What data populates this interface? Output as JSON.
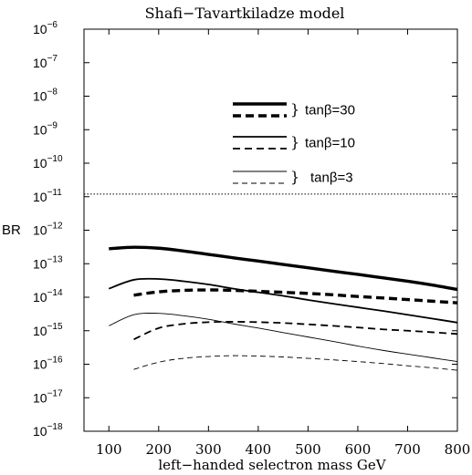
{
  "chart_data": {
    "type": "line",
    "title": "Shafi−Tavartkiladze  model",
    "xlabel": "left−handed  selectron  mass      GeV",
    "ylabel": "BR",
    "xlim": [
      50,
      800
    ],
    "ylim_log10": [
      -18,
      -6
    ],
    "y_scale": "log",
    "x_ticks": [
      100,
      200,
      300,
      400,
      500,
      600,
      700,
      800
    ],
    "x_tick_labels": [
      "100",
      "200",
      "300",
      "400",
      "500",
      "600",
      "700",
      "800"
    ],
    "y_ticks_exp": [
      -6,
      -7,
      -8,
      -9,
      -10,
      -11,
      -12,
      -13,
      -14,
      -15,
      -16,
      -17,
      -18
    ],
    "y_tick_base": "10",
    "reference_line": {
      "y": 1.2e-11,
      "style": "dotted"
    },
    "legend": [
      {
        "label": "tanβ=30",
        "brace": "}"
      },
      {
        "label": "tanβ=10",
        "brace": "}"
      },
      {
        "label": "tanβ=3",
        "brace": "}"
      }
    ],
    "series": [
      {
        "group": 0,
        "style": "solid",
        "weight": "thick",
        "x": [
          100,
          150,
          200,
          250,
          300,
          350,
          400,
          450,
          500,
          550,
          600,
          650,
          700,
          750,
          800
        ],
        "y": [
          2.8e-13,
          3.1e-13,
          2.9e-13,
          2.4e-13,
          1.9e-13,
          1.5e-13,
          1.2e-13,
          9.5e-14,
          7.6e-14,
          6e-14,
          4.8e-14,
          3.8e-14,
          3e-14,
          2.3e-14,
          1.7e-14
        ]
      },
      {
        "group": 0,
        "style": "dashed",
        "weight": "thick",
        "x": [
          150,
          200,
          250,
          300,
          350,
          400,
          450,
          500,
          550,
          600,
          650,
          700,
          750,
          800
        ],
        "y": [
          1.15e-14,
          1.45e-14,
          1.6e-14,
          1.65e-14,
          1.6e-14,
          1.5e-14,
          1.4e-14,
          1.3e-14,
          1.18e-14,
          1.05e-14,
          9.5e-15,
          8.5e-15,
          7.6e-15,
          6.8e-15
        ]
      },
      {
        "group": 1,
        "style": "solid",
        "weight": "medium",
        "x": [
          100,
          150,
          200,
          250,
          300,
          350,
          400,
          450,
          500,
          550,
          600,
          650,
          700,
          750,
          800
        ],
        "y": [
          1.8e-14,
          3.3e-14,
          3.5e-14,
          3e-14,
          2.4e-14,
          1.8e-14,
          1.4e-14,
          1.1e-14,
          8.3e-15,
          6.4e-15,
          5e-15,
          3.9e-15,
          3e-15,
          2.3e-15,
          1.75e-15
        ]
      },
      {
        "group": 1,
        "style": "dashed",
        "weight": "medium",
        "x": [
          150,
          200,
          250,
          300,
          350,
          400,
          450,
          500,
          550,
          600,
          650,
          700,
          750,
          800
        ],
        "y": [
          5.5e-16,
          1.2e-15,
          1.6e-15,
          1.8e-15,
          1.85e-15,
          1.8e-15,
          1.7e-15,
          1.55e-15,
          1.4e-15,
          1.25e-15,
          1.1e-15,
          1e-15,
          9e-16,
          8e-16
        ]
      },
      {
        "group": 2,
        "style": "solid",
        "weight": "thin",
        "x": [
          100,
          150,
          200,
          250,
          300,
          350,
          400,
          450,
          500,
          550,
          600,
          650,
          700,
          750,
          800
        ],
        "y": [
          1.4e-15,
          3e-15,
          3.3e-15,
          2.8e-15,
          2.2e-15,
          1.6e-15,
          1.2e-15,
          8.8e-16,
          6.5e-16,
          4.8e-16,
          3.5e-16,
          2.6e-16,
          2e-16,
          1.55e-16,
          1.2e-16
        ]
      },
      {
        "group": 2,
        "style": "dashed",
        "weight": "thin",
        "x": [
          150,
          200,
          250,
          300,
          350,
          400,
          450,
          500,
          550,
          600,
          650,
          700,
          750,
          800
        ],
        "y": [
          7e-17,
          1.15e-16,
          1.5e-16,
          1.7e-16,
          1.8e-16,
          1.75e-16,
          1.65e-16,
          1.5e-16,
          1.35e-16,
          1.2e-16,
          1.05e-16,
          9e-17,
          7.8e-17,
          6.6e-17
        ]
      }
    ]
  }
}
